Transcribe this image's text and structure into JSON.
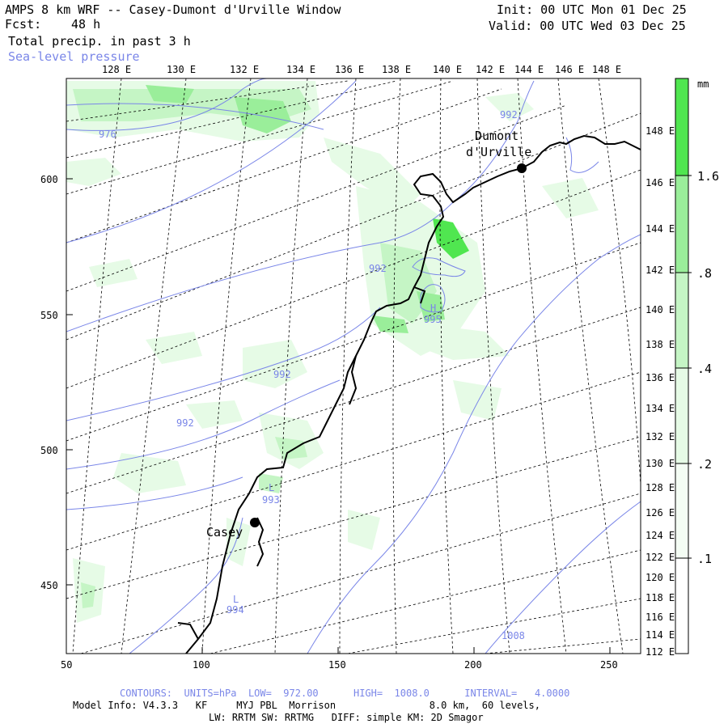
{
  "header": {
    "title": "AMPS 8 km WRF -- Casey-Dumont d'Urville Window",
    "fcst_label": "Fcst:",
    "fcst_value": "48 h",
    "field": "Total precip. in past 3 h",
    "overlay": "Sea-level pressure",
    "init": "Init: 00 UTC Mon 01 Dec 25",
    "valid": "Valid: 00 UTC Wed 03 Dec 25"
  },
  "axes": {
    "x_ticks": [
      "50",
      "100",
      "150",
      "200",
      "250"
    ],
    "y_ticks": [
      "600",
      "550",
      "500",
      "450"
    ],
    "top_lon": [
      "128 E",
      "130 E",
      "132 E",
      "134 E",
      "136 E",
      "138 E",
      "140 E",
      "142 E",
      "144 E",
      "146 E",
      "148 E"
    ],
    "right_lon": [
      "148 E",
      "146 E",
      "144 E",
      "142 E",
      "140 E",
      "138 E",
      "136 E",
      "134 E",
      "132 E",
      "130 E",
      "128 E",
      "126 E",
      "124 E",
      "122 E",
      "120 E",
      "118 E",
      "116 E",
      "114 E",
      "112 E"
    ]
  },
  "places": {
    "casey": "Casey",
    "dumont_line1": "Dumont",
    "dumont_line2": "d'Urville"
  },
  "pressure_labels": {
    "c1": "976",
    "c2": "992",
    "c3": "992",
    "c4": "992",
    "c5": "992",
    "c6": "1008",
    "h_mark": "H",
    "h_value": "995",
    "l1_mark": "L",
    "l1_value": "993",
    "l2_mark": "L",
    "l2_value": "994"
  },
  "colorbar": {
    "unit": "mm",
    "labels": [
      "1.6",
      ".8",
      ".4",
      ".2",
      ".1"
    ]
  },
  "footer": {
    "contours": "CONTOURS:  UNITS=hPa  LOW=  972.00      HIGH=  1008.0      INTERVAL=   4.0000",
    "model_info": "Model Info: V4.3.3   KF     MYJ PBL  Morrison                8.0 km,  60 levels,",
    "model_info2": "LW: RRTM SW: RRTMG   DIFF: simple KM: 2D Smagor"
  },
  "colors": {
    "precip_light": "#e6fbe6",
    "precip_low": "#c5f5c5",
    "precip_mid": "#9aee9a",
    "precip_high": "#50e650",
    "contour_blue": "#7a86e8",
    "coast": "#000000"
  }
}
